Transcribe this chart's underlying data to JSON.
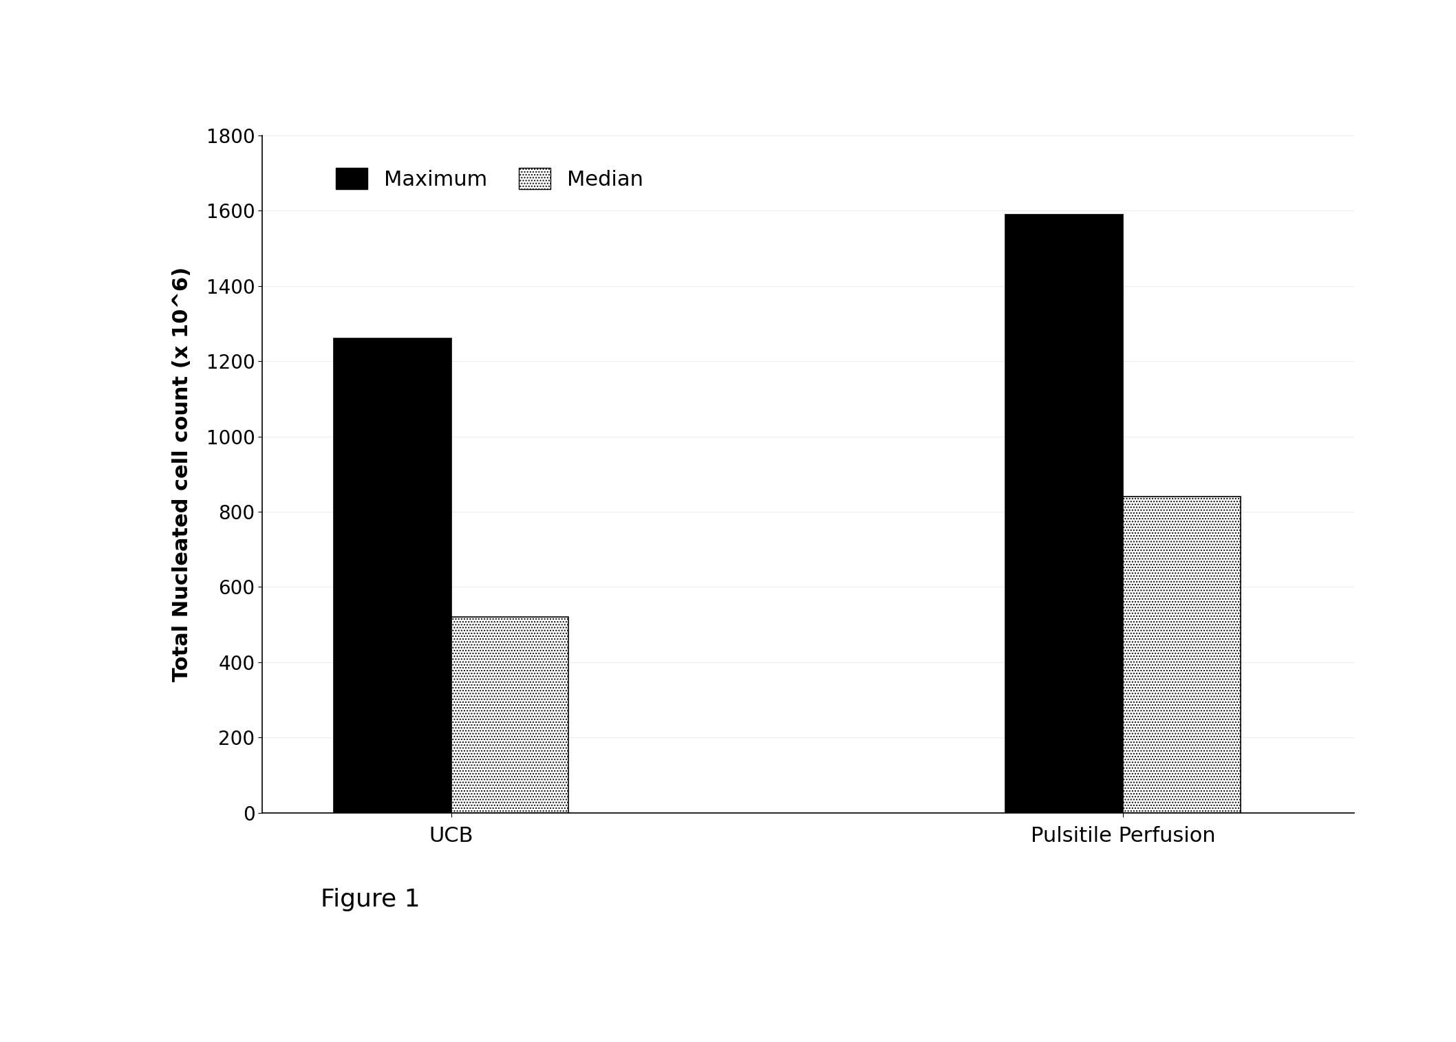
{
  "categories": [
    "UCB",
    "Pulsitile Perfusion"
  ],
  "maximum_values": [
    1260,
    1590
  ],
  "median_values": [
    520,
    840
  ],
  "bar_width": 0.28,
  "group_positions": [
    1.0,
    2.6
  ],
  "ylim": [
    0,
    1800
  ],
  "yticks": [
    0,
    200,
    400,
    600,
    800,
    1000,
    1200,
    1400,
    1600,
    1800
  ],
  "ylabel": "Total Nucleated cell count (x 10^6)",
  "figure_label": "Figure 1",
  "legend_labels": [
    "Maximum",
    "Median"
  ],
  "max_bar_color": "#000000",
  "median_bar_color": "#ffffff",
  "median_bar_edgecolor": "#000000",
  "background_color": "#ffffff",
  "label_fontsize": 22,
  "tick_fontsize": 20,
  "legend_fontsize": 22,
  "figure_label_fontsize": 26,
  "category_fontsize": 22
}
